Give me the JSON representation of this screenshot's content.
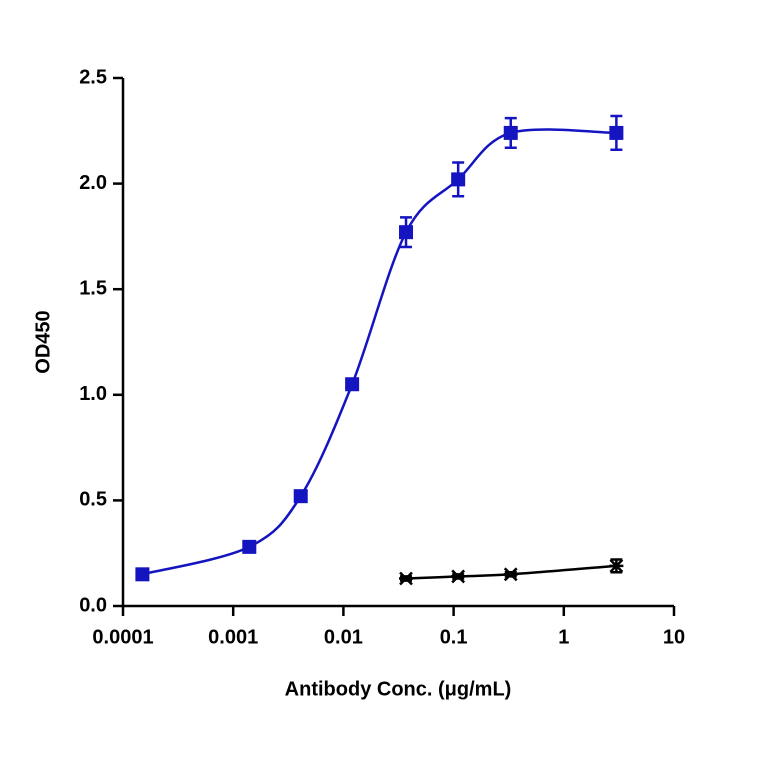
{
  "chart_data": {
    "type": "scatter-line",
    "xlabel": "Antibody Conc. (μg/mL)",
    "ylabel": "OD450",
    "xscale": "log",
    "xlim": [
      0.0001,
      10
    ],
    "xticks": [
      0.0001,
      0.001,
      0.01,
      0.1,
      1,
      10
    ],
    "ylim": [
      0,
      2.5
    ],
    "yticks": [
      {
        "value": 0,
        "label": "0.0"
      },
      0.5,
      {
        "value": 1,
        "label": "1.0"
      },
      1.5,
      {
        "value": 2,
        "label": "2.0"
      },
      2.5
    ],
    "series": [
      {
        "color": "#1414c0",
        "marker": "square",
        "x": [
          0.00015,
          0.0014,
          0.0041,
          0.012,
          0.037,
          0.11,
          0.33,
          3
        ],
        "values": [
          0.15,
          0.28,
          0.52,
          1.05,
          1.77,
          2.02,
          2.24,
          2.24
        ],
        "errors": [
          0.01,
          0.01,
          0.01,
          0.02,
          0.07,
          0.08,
          0.07,
          0.08
        ]
      },
      {
        "color": "#000000",
        "marker": "cross",
        "x": [
          0.037,
          0.11,
          0.33,
          3
        ],
        "values": [
          0.13,
          0.14,
          0.15,
          0.19
        ],
        "errors": [
          0.01,
          0.01,
          0.01,
          0.03
        ]
      }
    ]
  }
}
